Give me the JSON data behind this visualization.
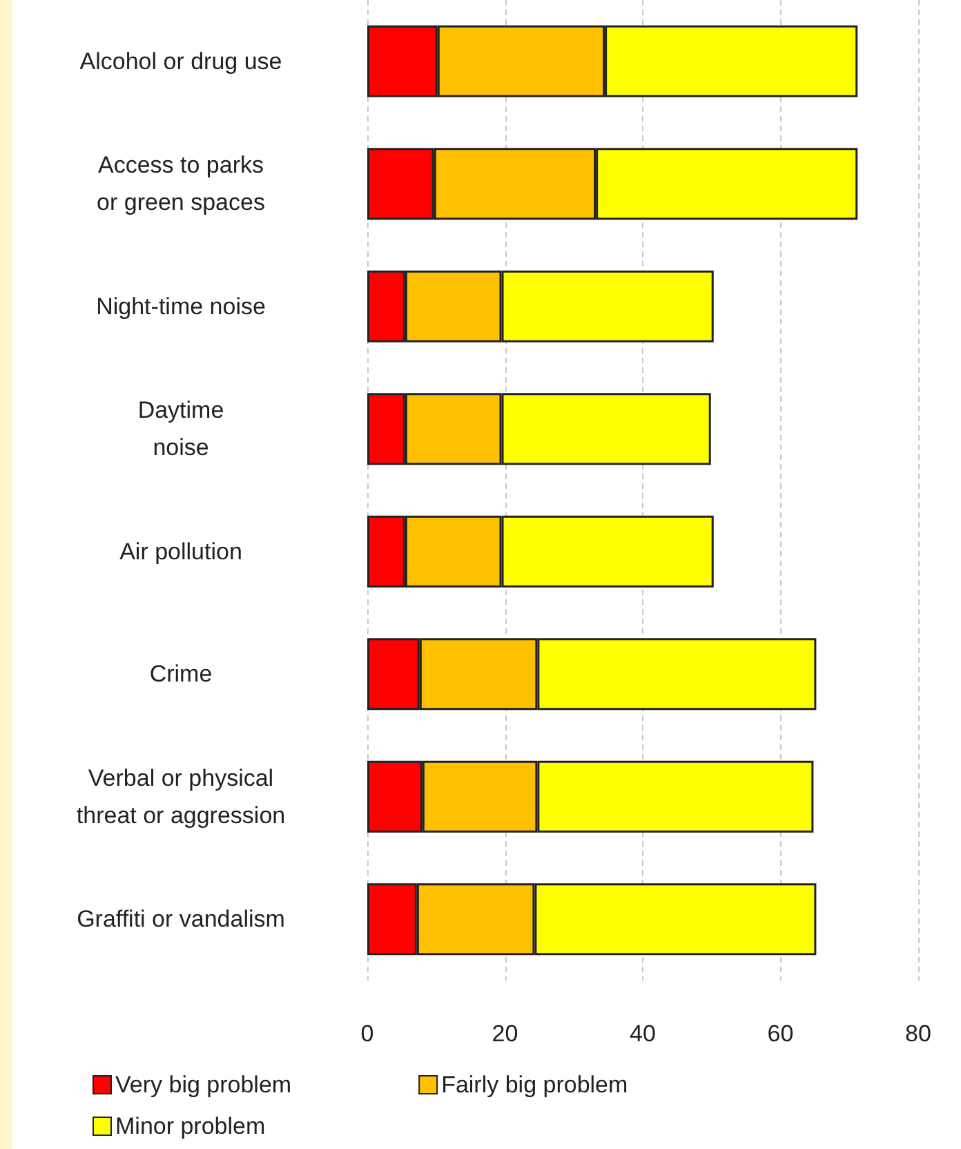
{
  "chart_data": {
    "type": "bar",
    "orientation": "horizontal",
    "stacked": true,
    "categories": [
      "Alcohol or drug use",
      "Access to parks\nor green spaces",
      "Night-time noise",
      "Daytime\nnoise",
      "Air pollution",
      "Crime",
      "Verbal or physical\nthreat or aggression",
      "Graffiti or vandalism"
    ],
    "series": [
      {
        "name": "Very big problem",
        "color": "#ff0000",
        "values": [
          10.2,
          9.7,
          5.5,
          5.5,
          5.5,
          7.6,
          8.0,
          7.2
        ]
      },
      {
        "name": "Fairly big problem",
        "color": "#ffc000",
        "values": [
          24.3,
          23.5,
          14.0,
          14.0,
          14.0,
          17.1,
          16.7,
          17.1
        ]
      },
      {
        "name": "Minor problem",
        "color": "#ffff00",
        "values": [
          36.7,
          38.0,
          30.8,
          30.4,
          30.8,
          40.5,
          40.1,
          40.9
        ]
      }
    ],
    "xlim": [
      0,
      80
    ],
    "xticks": [
      0,
      20,
      40,
      60,
      80
    ],
    "grid": "x",
    "legend": "bottom left"
  }
}
